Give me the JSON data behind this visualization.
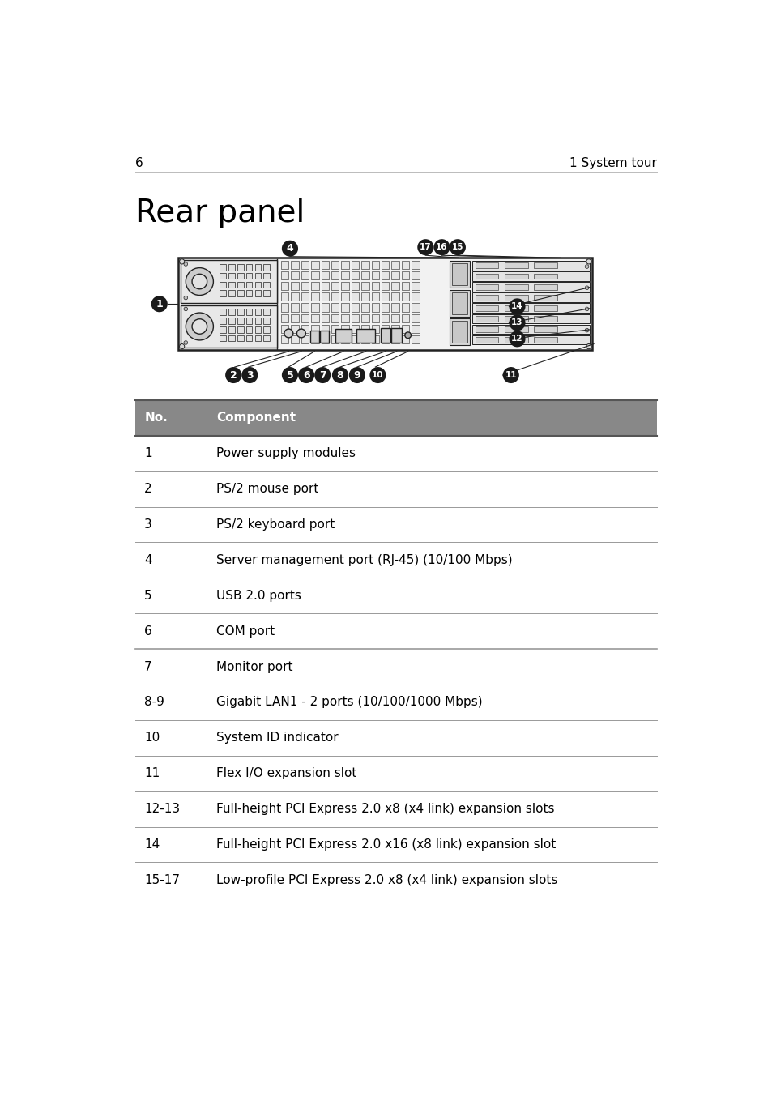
{
  "page_number": "6",
  "page_header_right": "1 System tour",
  "section_title": "Rear panel",
  "background_color": "#ffffff",
  "table_header_bg": "#888888",
  "table_data": [
    {
      "no": "No.",
      "component": "Component",
      "header": true
    },
    {
      "no": "1",
      "component": "Power supply modules",
      "header": false
    },
    {
      "no": "2",
      "component": "PS/2 mouse port",
      "header": false
    },
    {
      "no": "3",
      "component": "PS/2 keyboard port",
      "header": false
    },
    {
      "no": "4",
      "component": "Server management port (RJ-45) (10/100 Mbps)",
      "header": false
    },
    {
      "no": "5",
      "component": "USB 2.0 ports",
      "header": false
    },
    {
      "no": "6",
      "component": "COM port",
      "header": false
    },
    {
      "no": "7",
      "component": "Monitor port",
      "header": false
    },
    {
      "no": "8-9",
      "component": "Gigabit LAN1 - 2 ports (10/100/1000 Mbps)",
      "header": false
    },
    {
      "no": "10",
      "component": "System ID indicator",
      "header": false
    },
    {
      "no": "11",
      "component": "Flex I/O expansion slot",
      "header": false
    },
    {
      "no": "12-13",
      "component": "Full-height PCI Express 2.0 x8 (x4 link) expansion slots",
      "header": false
    },
    {
      "no": "14",
      "component": "Full-height PCI Express 2.0 x16 (x8 link) expansion slot",
      "header": false
    },
    {
      "no": "15-17",
      "component": "Low-profile PCI Express 2.0 x8 (x4 link) expansion slots",
      "header": false
    }
  ],
  "bullet_color": "#1a1a1a",
  "bullet_text_color": "#ffffff",
  "diagram_line_color": "#222222"
}
